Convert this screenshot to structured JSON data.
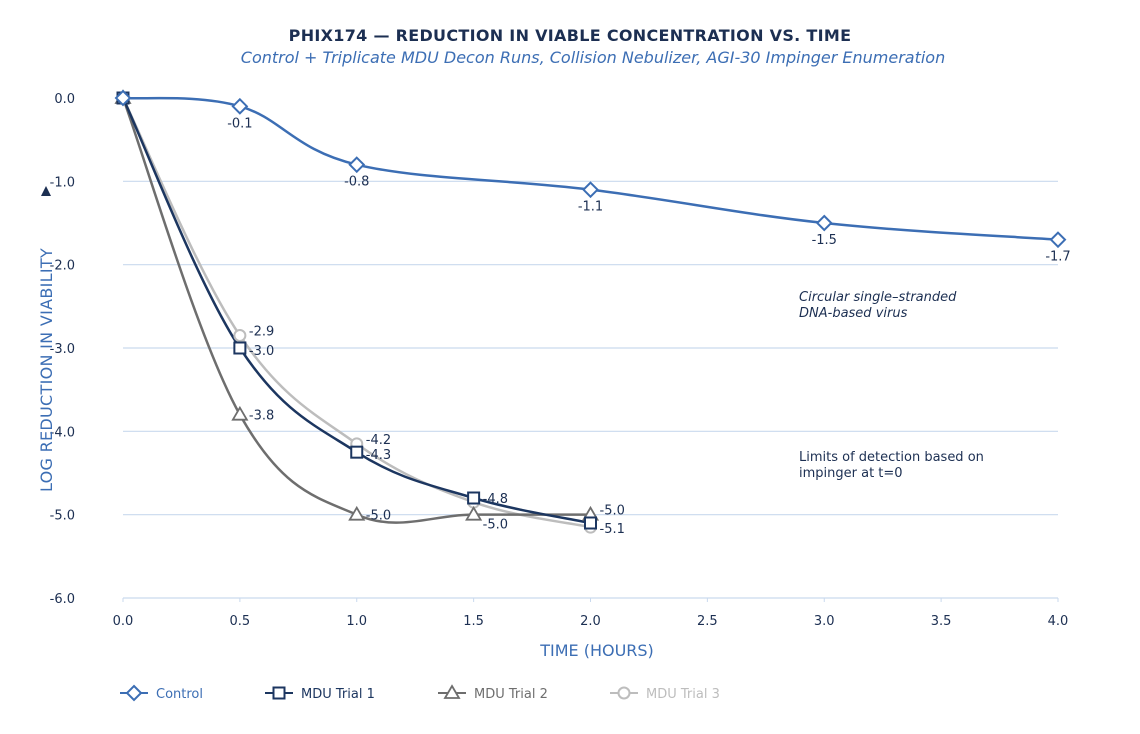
{
  "chart_data": {
    "type": "line",
    "title": "PHIX174 — REDUCTION IN VIABLE CONCENTRATION VS. TIME",
    "subtitle": "Control + Triplicate MDU Decon Runs, Collision Nebulizer, AGI-30 Impinger Enumeration",
    "xlabel": "TIME (HOURS)",
    "ylabel": "LOG REDUCTION IN VIABILITY",
    "xlim": [
      0,
      4
    ],
    "ylim": [
      -6,
      0
    ],
    "xticks": [
      "0.0",
      "0.5",
      "1.0",
      "1.5",
      "2.0",
      "2.5",
      "3.0",
      "3.5",
      "4.0"
    ],
    "xtick_values": [
      0,
      0.5,
      1,
      1.5,
      2,
      2.5,
      3,
      3.5,
      4
    ],
    "yticks": [
      "0.0",
      "-1.0",
      "-2.0",
      "-3.0",
      "-4.0",
      "-5.0",
      "-6.0"
    ],
    "ytick_values": [
      0,
      -1,
      -2,
      -3,
      -4,
      -5,
      -6
    ],
    "grid": "horizontal",
    "legend_position": "bottom-left",
    "series": [
      {
        "name": "Control",
        "marker": "diamond",
        "color": "#3c6eb4",
        "x": [
          0,
          0.5,
          1,
          2,
          3,
          4
        ],
        "y": [
          0,
          -0.1,
          -0.8,
          -1.1,
          -1.5,
          -1.7
        ],
        "labels": [
          "",
          "-0.1",
          "-0.8",
          "-1.1",
          "-1.5",
          "-1.7"
        ],
        "label_pos": "below"
      },
      {
        "name": "MDU Trial 1",
        "marker": "square",
        "color": "#1c3660",
        "x": [
          0,
          0.5,
          1,
          1.5,
          2
        ],
        "y": [
          0,
          -3.0,
          -4.25,
          -4.8,
          -5.1
        ],
        "labels": [
          "",
          "-3.0",
          "-4.3",
          "-4.8",
          "-5.1"
        ],
        "label_pos": "right"
      },
      {
        "name": "MDU Trial 2",
        "marker": "triangle",
        "color": "#6e6e6e",
        "x": [
          0,
          0.5,
          1,
          1.5,
          2
        ],
        "y": [
          0,
          -3.8,
          -5.0,
          -5.0,
          -5.0
        ],
        "labels": [
          "",
          "-3.8",
          "-5.0",
          "-5.0",
          "-5.0"
        ],
        "label_pos": "right"
      },
      {
        "name": "MDU Trial 3",
        "marker": "circle",
        "color": "#bdbdbd",
        "x": [
          0,
          0.5,
          1,
          1.5,
          2
        ],
        "y": [
          0,
          -2.85,
          -4.15,
          -4.85,
          -5.15
        ],
        "labels": [
          "",
          "-2.9",
          "-4.2",
          "",
          ""
        ],
        "label_pos": "right"
      }
    ],
    "annotations": [
      {
        "text_lines": [
          "Circular single–stranded",
          "DNA-based virus"
        ],
        "style": "italic"
      },
      {
        "text_lines": [
          "Limits of detection based on",
          "impinger at t=0"
        ],
        "style": "normal"
      }
    ]
  }
}
